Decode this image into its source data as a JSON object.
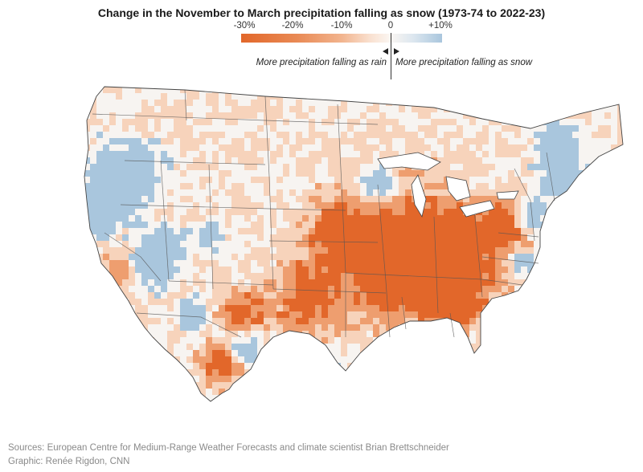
{
  "title": "Change in the November to March precipitation falling as snow (1973-74 to 2022-23)",
  "legend": {
    "ticks": [
      "-30%",
      "-20%",
      "-10%",
      "0",
      "+10%"
    ],
    "rain_label": "More precipitation falling as rain",
    "snow_label": "More precipitation falling as snow",
    "colors": {
      "strong_loss": "#e2672a",
      "moderate_loss": "#ee9e6f",
      "slight_loss": "#f7d3bb",
      "neutral": "#f7f4f1",
      "gain": "#a9c6dd"
    }
  },
  "footer": {
    "sources": "Sources: European Centre for Medium-Range Weather Forecasts and climate scientist Brian Brettschneider",
    "graphic": "Graphic: Renée Rigdon, CNN"
  }
}
